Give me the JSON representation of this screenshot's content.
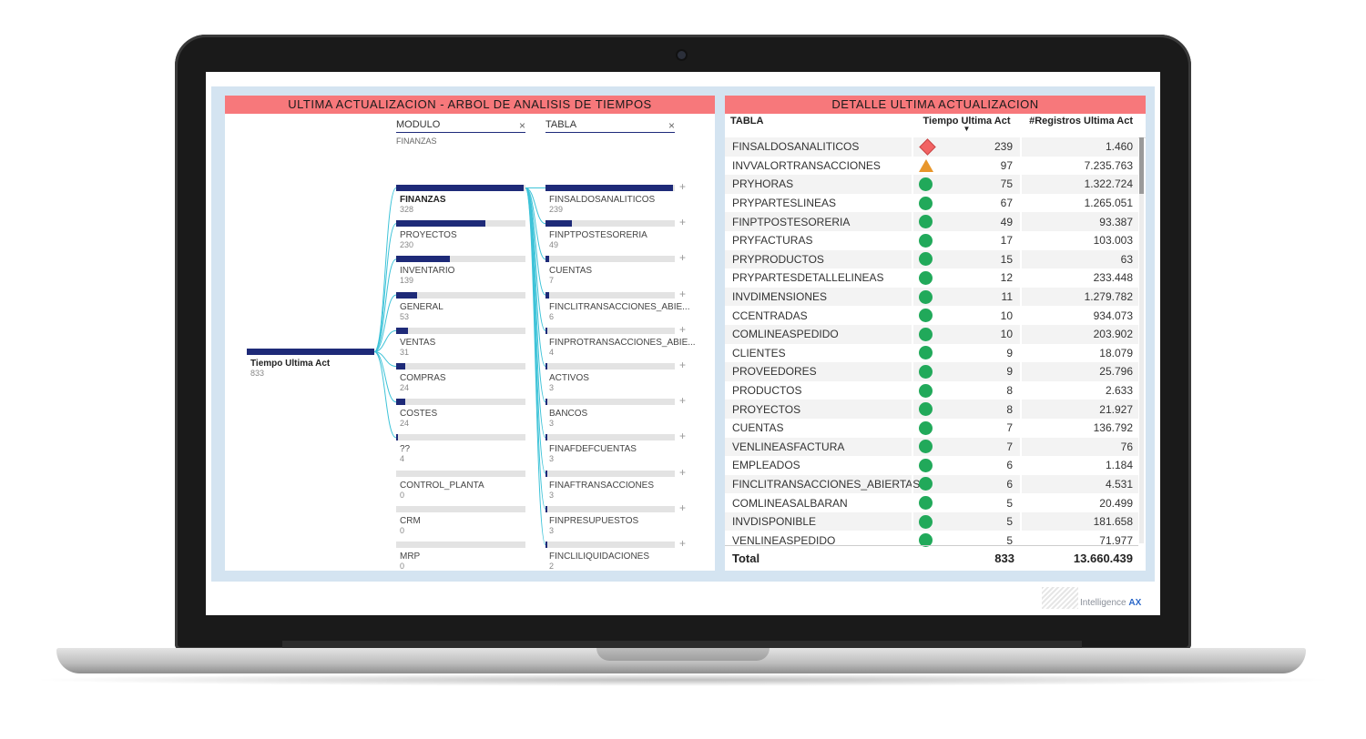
{
  "left_panel": {
    "title": "ULTIMA ACTUALIZACION - ARBOL DE ANALISIS DE TIEMPOS",
    "levels": [
      {
        "name": "MODULO",
        "selected": "FINANZAS"
      },
      {
        "name": "TABLA",
        "selected": ""
      }
    ],
    "root": {
      "label": "Tiempo Ultima Act",
      "value": "833"
    },
    "modulo_nodes": [
      {
        "label": "FINANZAS",
        "value": 328
      },
      {
        "label": "PROYECTOS",
        "value": 230
      },
      {
        "label": "INVENTARIO",
        "value": 139
      },
      {
        "label": "GENERAL",
        "value": 53
      },
      {
        "label": "VENTAS",
        "value": 31
      },
      {
        "label": "COMPRAS",
        "value": 24
      },
      {
        "label": "COSTES",
        "value": 24
      },
      {
        "label": "??",
        "value": 4
      },
      {
        "label": "CONTROL_PLANTA",
        "value": 0
      },
      {
        "label": "CRM",
        "value": 0
      },
      {
        "label": "MRP",
        "value": 0
      }
    ],
    "tabla_nodes": [
      {
        "label": "FINSALDOSANALITICOS",
        "value": 239
      },
      {
        "label": "FINPTPOSTESORERIA",
        "value": 49
      },
      {
        "label": "CUENTAS",
        "value": 7
      },
      {
        "label": "FINCLITRANSACCIONES_ABIE...",
        "value": 6
      },
      {
        "label": "FINPROTRANSACCIONES_ABIE...",
        "value": 4
      },
      {
        "label": "ACTIVOS",
        "value": 3
      },
      {
        "label": "BANCOS",
        "value": 3
      },
      {
        "label": "FINAFDEFCUENTAS",
        "value": 3
      },
      {
        "label": "FINAFTRANSACCIONES",
        "value": 3
      },
      {
        "label": "FINPRESUPUESTOS",
        "value": 3
      },
      {
        "label": "FINCLILIQUIDACIONES",
        "value": 2
      }
    ],
    "close_glyph": "×",
    "expand_glyph": "+"
  },
  "right_panel": {
    "title": "DETALLE ULTIMA ACTUALIZACION",
    "columns": [
      "TABLA",
      "Tiempo Ultima Act",
      "#Registros Ultima Act"
    ],
    "sort_indicator": "▼",
    "rows": [
      {
        "tabla": "FINSALDOSANALITICOS",
        "kpi": "diamond",
        "tiempo": "239",
        "registros": "1.460"
      },
      {
        "tabla": "INVVALORTRANSACCIONES",
        "kpi": "triangle",
        "tiempo": "97",
        "registros": "7.235.763"
      },
      {
        "tabla": "PRYHORAS",
        "kpi": "circle",
        "tiempo": "75",
        "registros": "1.322.724"
      },
      {
        "tabla": "PRYPARTESLINEAS",
        "kpi": "circle",
        "tiempo": "67",
        "registros": "1.265.051"
      },
      {
        "tabla": "FINPTPOSTESORERIA",
        "kpi": "circle",
        "tiempo": "49",
        "registros": "93.387"
      },
      {
        "tabla": "PRYFACTURAS",
        "kpi": "circle",
        "tiempo": "17",
        "registros": "103.003"
      },
      {
        "tabla": "PRYPRODUCTOS",
        "kpi": "circle",
        "tiempo": "15",
        "registros": "63"
      },
      {
        "tabla": "PRYPARTESDETALLELINEAS",
        "kpi": "circle",
        "tiempo": "12",
        "registros": "233.448"
      },
      {
        "tabla": "INVDIMENSIONES",
        "kpi": "circle",
        "tiempo": "11",
        "registros": "1.279.782"
      },
      {
        "tabla": "CCENTRADAS",
        "kpi": "circle",
        "tiempo": "10",
        "registros": "934.073"
      },
      {
        "tabla": "COMLINEASPEDIDO",
        "kpi": "circle",
        "tiempo": "10",
        "registros": "203.902"
      },
      {
        "tabla": "CLIENTES",
        "kpi": "circle",
        "tiempo": "9",
        "registros": "18.079"
      },
      {
        "tabla": "PROVEEDORES",
        "kpi": "circle",
        "tiempo": "9",
        "registros": "25.796"
      },
      {
        "tabla": "PRODUCTOS",
        "kpi": "circle",
        "tiempo": "8",
        "registros": "2.633"
      },
      {
        "tabla": "PROYECTOS",
        "kpi": "circle",
        "tiempo": "8",
        "registros": "21.927"
      },
      {
        "tabla": "CUENTAS",
        "kpi": "circle",
        "tiempo": "7",
        "registros": "136.792"
      },
      {
        "tabla": "VENLINEASFACTURA",
        "kpi": "circle",
        "tiempo": "7",
        "registros": "76"
      },
      {
        "tabla": "EMPLEADOS",
        "kpi": "circle",
        "tiempo": "6",
        "registros": "1.184"
      },
      {
        "tabla": "FINCLITRANSACCIONES_ABIERTAS",
        "kpi": "circle",
        "tiempo": "6",
        "registros": "4.531"
      },
      {
        "tabla": "COMLINEASALBARAN",
        "kpi": "circle",
        "tiempo": "5",
        "registros": "20.499"
      },
      {
        "tabla": "INVDISPONIBLE",
        "kpi": "circle",
        "tiempo": "5",
        "registros": "181.658"
      },
      {
        "tabla": "VENLINEASPEDIDO",
        "kpi": "circle",
        "tiempo": "5",
        "registros": "71.977"
      }
    ],
    "total": {
      "label": "Total",
      "tiempo": "833",
      "registros": "13.660.439"
    }
  },
  "brand": {
    "prefix": "Intelligence ",
    "suffix": "AX"
  },
  "colors": {
    "title_bar": "#f7787b",
    "bar": "#1e2a78",
    "link": "#3ec3d8",
    "kpi_good": "#21a95a",
    "kpi_bad": "#f26363",
    "kpi_warn": "#e8962b"
  }
}
